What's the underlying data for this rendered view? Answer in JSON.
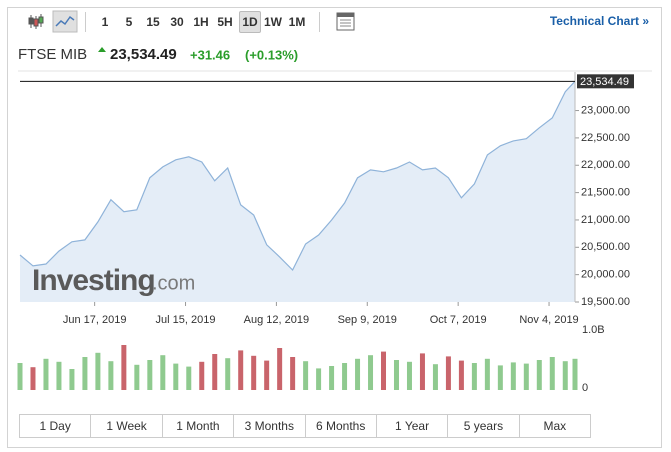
{
  "toolbar": {
    "intervals": [
      "1",
      "5",
      "15",
      "30",
      "1H",
      "5H",
      "1D",
      "1W",
      "1M"
    ],
    "selected": "1D",
    "link": "Technical Chart »"
  },
  "header": {
    "name": "FTSE MIB",
    "price": "23,534.49",
    "change": "+31.46",
    "change_pct": "(+0.13%)"
  },
  "watermark": {
    "brand": "Investing",
    "suffix": ".com"
  },
  "ranges": [
    "1 Day",
    "1 Week",
    "1 Month",
    "3 Months",
    "6 Months",
    "1 Year",
    "5 years",
    "Max"
  ],
  "chart_data": [
    {
      "type": "area",
      "color": "#8fb3d9",
      "fill": "#e4edf7",
      "x": [
        "2019-05-25",
        "2019-05-29",
        "2019-06-02",
        "2019-06-06",
        "2019-06-10",
        "2019-06-14",
        "2019-06-18",
        "2019-06-22",
        "2019-06-26",
        "2019-06-30",
        "2019-07-04",
        "2019-07-08",
        "2019-07-12",
        "2019-07-16",
        "2019-07-20",
        "2019-07-24",
        "2019-07-28",
        "2019-08-01",
        "2019-08-05",
        "2019-08-09",
        "2019-08-13",
        "2019-08-17",
        "2019-08-21",
        "2019-08-25",
        "2019-08-29",
        "2019-09-02",
        "2019-09-06",
        "2019-09-10",
        "2019-09-14",
        "2019-09-18",
        "2019-09-22",
        "2019-09-26",
        "2019-09-30",
        "2019-10-04",
        "2019-10-08",
        "2019-10-12",
        "2019-10-16",
        "2019-10-20",
        "2019-10-24",
        "2019-10-28",
        "2019-11-01",
        "2019-11-05",
        "2019-11-09",
        "2019-11-12"
      ],
      "values": [
        20360,
        20160,
        20195,
        20430,
        20600,
        20635,
        20965,
        21370,
        21150,
        21185,
        21770,
        21970,
        22100,
        22155,
        22060,
        21715,
        21950,
        21275,
        21090,
        20545,
        20325,
        20085,
        20560,
        20725,
        21000,
        21310,
        21770,
        21915,
        21880,
        21950,
        22060,
        21915,
        21950,
        21770,
        21405,
        21660,
        22190,
        22355,
        22445,
        22485,
        22685,
        22865,
        23345,
        23534.49
      ],
      "xlim": [
        "2019-05-25",
        "2019-11-12"
      ],
      "xticks": [
        {
          "value": "2019-06-17",
          "label": "Jun 17, 2019"
        },
        {
          "value": "2019-07-15",
          "label": "Jul 15, 2019"
        },
        {
          "value": "2019-08-12",
          "label": "Aug 12, 2019"
        },
        {
          "value": "2019-09-09",
          "label": "Sep 9, 2019"
        },
        {
          "value": "2019-10-07",
          "label": "Oct 7, 2019"
        },
        {
          "value": "2019-11-04",
          "label": "Nov 4, 2019"
        }
      ],
      "ylim": [
        19500,
        23650
      ],
      "yticks": [
        {
          "value": 19500,
          "label": "19,500.00"
        },
        {
          "value": 20000,
          "label": "20,000.00"
        },
        {
          "value": 20500,
          "label": "20,500.00"
        },
        {
          "value": 21000,
          "label": "21,000.00"
        },
        {
          "value": 21500,
          "label": "21,500.00"
        },
        {
          "value": 22000,
          "label": "22,000.00"
        },
        {
          "value": 22500,
          "label": "22,500.00"
        },
        {
          "value": 23000,
          "label": "23,000.00"
        }
      ]
    },
    {
      "type": "bar",
      "up_color": "#8fca8f",
      "down_color": "#c9646b",
      "x": [
        "2019-05-25",
        "2019-05-29",
        "2019-06-02",
        "2019-06-06",
        "2019-06-10",
        "2019-06-14",
        "2019-06-18",
        "2019-06-22",
        "2019-06-26",
        "2019-06-30",
        "2019-07-04",
        "2019-07-08",
        "2019-07-12",
        "2019-07-16",
        "2019-07-20",
        "2019-07-24",
        "2019-07-28",
        "2019-08-01",
        "2019-08-05",
        "2019-08-09",
        "2019-08-13",
        "2019-08-17",
        "2019-08-21",
        "2019-08-25",
        "2019-08-29",
        "2019-09-02",
        "2019-09-06",
        "2019-09-10",
        "2019-09-14",
        "2019-09-18",
        "2019-09-22",
        "2019-09-26",
        "2019-09-30",
        "2019-10-04",
        "2019-10-08",
        "2019-10-12",
        "2019-10-16",
        "2019-10-20",
        "2019-10-24",
        "2019-10-28",
        "2019-11-01",
        "2019-11-05",
        "2019-11-09",
        "2019-11-12"
      ],
      "values": [
        0.45,
        0.38,
        0.52,
        0.47,
        0.35,
        0.55,
        0.62,
        0.48,
        0.75,
        0.42,
        0.5,
        0.58,
        0.44,
        0.39,
        0.47,
        0.6,
        0.53,
        0.66,
        0.57,
        0.49,
        0.7,
        0.55,
        0.48,
        0.36,
        0.4,
        0.45,
        0.52,
        0.58,
        0.64,
        0.5,
        0.47,
        0.61,
        0.43,
        0.56,
        0.49,
        0.45,
        0.52,
        0.41,
        0.46,
        0.44,
        0.5,
        0.55,
        0.48,
        0.52
      ],
      "xlim": [
        "2019-05-25",
        "2019-11-12"
      ],
      "ylim": [
        0,
        1.05
      ],
      "yticks": [
        0,
        {
          "value": 1,
          "label": "1.0B"
        }
      ]
    }
  ]
}
